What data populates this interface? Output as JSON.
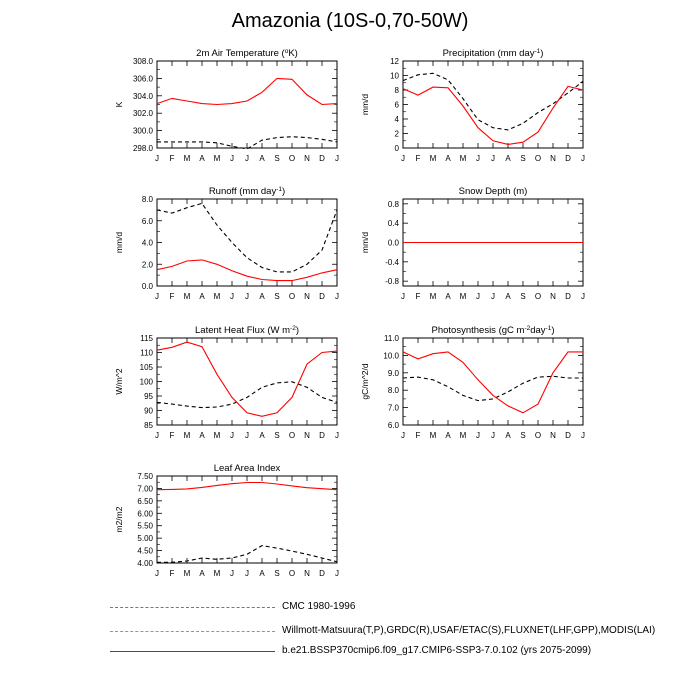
{
  "title": "Amazonia (10S-0,70-50W)",
  "months": [
    "J",
    "F",
    "M",
    "A",
    "M",
    "J",
    "J",
    "A",
    "S",
    "O",
    "N",
    "D",
    "J"
  ],
  "colors": {
    "model": "#ff0000",
    "obs": "#000000",
    "legend_cmc": "#777777",
    "legend_wm": "#8a8adf"
  },
  "chart_data": [
    {
      "type": "line",
      "title": "2m Air Temperature (°K)",
      "ylabel": "K",
      "ylim": [
        298.0,
        308.0
      ],
      "yticks": [
        "298.0",
        "300.0",
        "302.0",
        "304.0",
        "306.0",
        "308.0"
      ],
      "categories": [
        "J",
        "F",
        "M",
        "A",
        "M",
        "J",
        "J",
        "A",
        "S",
        "O",
        "N",
        "D",
        "J"
      ],
      "series": [
        {
          "name": "b.e21.BSSP370cmip6.f09_g17.CMIP6-SSP3-7.0.102 (yrs 2075-2099)",
          "style": "solid",
          "color": "#ff0000",
          "values": [
            303.1,
            303.7,
            303.4,
            303.1,
            303.0,
            303.1,
            303.4,
            304.4,
            306.0,
            305.9,
            304.1,
            303.0,
            303.1
          ]
        },
        {
          "name": "Willmott-Matsuura(T,P),GRDC(R),USAF/ETAC(S),FLUXNET(LHF,GPP),MODIS(LAI)",
          "style": "dashed",
          "color": "#000000",
          "values": [
            298.7,
            298.7,
            298.7,
            298.7,
            298.6,
            298.2,
            297.9,
            298.9,
            299.2,
            299.3,
            299.2,
            299.0,
            298.7
          ]
        }
      ]
    },
    {
      "type": "line",
      "title": "Precipitation (mm day-1)",
      "ylabel": "mm/d",
      "ylim": [
        0,
        12
      ],
      "yticks": [
        "0",
        "2",
        "4",
        "6",
        "8",
        "10",
        "12"
      ],
      "categories": [
        "J",
        "F",
        "M",
        "A",
        "M",
        "J",
        "J",
        "A",
        "S",
        "O",
        "N",
        "D",
        "J"
      ],
      "series": [
        {
          "name": "b.e21.BSSP370cmip6.f09_g17.CMIP6-SSP3-7.0.102 (yrs 2075-2099)",
          "style": "solid",
          "color": "#ff0000",
          "values": [
            8.2,
            7.3,
            8.4,
            8.3,
            5.8,
            2.8,
            1.0,
            0.5,
            0.8,
            2.2,
            5.5,
            8.5,
            8.0
          ]
        },
        {
          "name": "Willmott-Matsuura(T,P),GRDC(R),USAF/ETAC(S),FLUXNET(LHF,GPP),MODIS(LAI)",
          "style": "dashed",
          "color": "#000000",
          "values": [
            9.3,
            10.1,
            10.3,
            9.4,
            6.8,
            3.9,
            2.8,
            2.5,
            3.4,
            4.9,
            6.1,
            7.6,
            9.2
          ]
        }
      ]
    },
    {
      "type": "line",
      "title": "Runoff (mm day-1)",
      "ylabel": "mm/d",
      "ylim": [
        0,
        8
      ],
      "yticks": [
        "0.0",
        "2.0",
        "4.0",
        "6.0",
        "8.0"
      ],
      "categories": [
        "J",
        "F",
        "M",
        "A",
        "M",
        "J",
        "J",
        "A",
        "S",
        "O",
        "N",
        "D",
        "J"
      ],
      "series": [
        {
          "name": "b.e21.BSSP370cmip6.f09_g17.CMIP6-SSP3-7.0.102 (yrs 2075-2099)",
          "style": "solid",
          "color": "#ff0000",
          "values": [
            1.5,
            1.8,
            2.3,
            2.4,
            2.0,
            1.4,
            0.9,
            0.6,
            0.5,
            0.5,
            0.8,
            1.2,
            1.5
          ]
        },
        {
          "name": "Willmott-Matsuura(T,P),GRDC(R),USAF/ETAC(S),FLUXNET(LHF,GPP),MODIS(LAI)",
          "style": "dashed",
          "color": "#000000",
          "values": [
            7.0,
            6.7,
            7.2,
            7.6,
            5.6,
            4.0,
            2.6,
            1.7,
            1.3,
            1.3,
            2.0,
            3.3,
            7.0
          ]
        }
      ]
    },
    {
      "type": "line",
      "title": "Snow Depth (m)",
      "ylabel": "mm/d",
      "ylim": [
        -0.9,
        0.9
      ],
      "yticks": [
        "-0.8",
        "-0.4",
        "0.0",
        "0.4",
        "0.8"
      ],
      "ytickvals": [
        -0.8,
        -0.4,
        0.0,
        0.4,
        0.8
      ],
      "yminor": [
        -0.6,
        -0.2,
        0.2,
        0.6
      ],
      "categories": [
        "J",
        "F",
        "M",
        "A",
        "M",
        "J",
        "J",
        "A",
        "S",
        "O",
        "N",
        "D",
        "J"
      ],
      "series": [
        {
          "name": "b.e21.BSSP370cmip6.f09_g17.CMIP6-SSP3-7.0.102 (yrs 2075-2099)",
          "style": "solid",
          "color": "#ff0000",
          "values": [
            0,
            0,
            0,
            0,
            0,
            0,
            0,
            0,
            0,
            0,
            0,
            0,
            0
          ]
        },
        {
          "name": "Willmott-Matsuura(T,P),GRDC(R),USAF/ETAC(S),FLUXNET(LHF,GPP),MODIS(LAI)",
          "style": "dashed",
          "color": "#000000",
          "values": [
            0,
            0,
            0,
            0,
            0,
            0,
            0,
            0,
            0,
            0,
            0,
            0,
            0
          ]
        }
      ]
    },
    {
      "type": "line",
      "title": "Latent Heat Flux (W m-2)",
      "ylabel": "W/m^2",
      "ylim": [
        85,
        115
      ],
      "yticks": [
        "85",
        "90",
        "95",
        "100",
        "105",
        "110",
        "115"
      ],
      "categories": [
        "J",
        "F",
        "M",
        "A",
        "M",
        "J",
        "J",
        "A",
        "S",
        "O",
        "N",
        "D",
        "J"
      ],
      "series": [
        {
          "name": "b.e21.BSSP370cmip6.f09_g17.CMIP6-SSP3-7.0.102 (yrs 2075-2099)",
          "style": "solid",
          "color": "#ff0000",
          "values": [
            110.8,
            111.8,
            113.6,
            112.0,
            102.5,
            94.5,
            89.2,
            88.0,
            89.2,
            94.5,
            106.0,
            110.0,
            110.5
          ]
        },
        {
          "name": "Willmott-Matsuura(T,P),GRDC(R),USAF/ETAC(S),FLUXNET(LHF,GPP),MODIS(LAI)",
          "style": "dashed",
          "color": "#000000",
          "values": [
            92.8,
            92.2,
            91.5,
            91.0,
            91.2,
            92.2,
            94.5,
            98.0,
            99.5,
            99.9,
            98.0,
            94.5,
            92.8
          ]
        }
      ]
    },
    {
      "type": "line",
      "title": "Photosynthesis (gC m-2day-1)",
      "ylabel": "gC/m^2/d",
      "ylim": [
        6.0,
        11.0
      ],
      "yticks": [
        "6.0",
        "7.0",
        "8.0",
        "9.0",
        "10.0",
        "11.0"
      ],
      "categories": [
        "J",
        "F",
        "M",
        "A",
        "M",
        "J",
        "J",
        "A",
        "S",
        "O",
        "N",
        "D",
        "J"
      ],
      "series": [
        {
          "name": "b.e21.BSSP370cmip6.f09_g17.CMIP6-SSP3-7.0.102 (yrs 2075-2099)",
          "style": "solid",
          "color": "#ff0000",
          "values": [
            10.2,
            9.8,
            10.1,
            10.2,
            9.6,
            8.6,
            7.7,
            7.1,
            6.7,
            7.2,
            9.0,
            10.2,
            10.2
          ]
        },
        {
          "name": "Willmott-Matsuura(T,P),GRDC(R),USAF/ETAC(S),FLUXNET(LHF,GPP),MODIS(LAI)",
          "style": "dashed",
          "color": "#000000",
          "values": [
            8.7,
            8.75,
            8.6,
            8.2,
            7.7,
            7.4,
            7.5,
            7.9,
            8.4,
            8.75,
            8.8,
            8.7,
            8.7
          ]
        }
      ]
    },
    {
      "type": "line",
      "title": "Leaf Area Index",
      "ylabel": "m2/m2",
      "ylim": [
        4.0,
        7.5
      ],
      "yticks": [
        "4.00",
        "4.50",
        "5.00",
        "5.50",
        "6.00",
        "6.50",
        "7.00",
        "7.50"
      ],
      "categories": [
        "J",
        "F",
        "M",
        "A",
        "M",
        "J",
        "J",
        "A",
        "S",
        "O",
        "N",
        "D",
        "J"
      ],
      "series": [
        {
          "name": "b.e21.BSSP370cmip6.f09_g17.CMIP6-SSP3-7.0.102 (yrs 2075-2099)",
          "style": "solid",
          "color": "#ff0000",
          "values": [
            6.95,
            6.96,
            6.98,
            7.04,
            7.12,
            7.19,
            7.24,
            7.24,
            7.18,
            7.1,
            7.03,
            6.99,
            6.95
          ]
        },
        {
          "name": "Willmott-Matsuura(T,P),GRDC(R),USAF/ETAC(S),FLUXNET(LHF,GPP),MODIS(LAI)",
          "style": "dashed",
          "color": "#000000",
          "values": [
            4.03,
            4.03,
            4.08,
            4.2,
            4.15,
            4.2,
            4.35,
            4.7,
            4.6,
            4.48,
            4.35,
            4.2,
            4.05
          ]
        }
      ]
    }
  ],
  "legend": [
    {
      "label": "CMC 1980-1996",
      "style": "dashed",
      "color": "#777777"
    },
    {
      "label": "Willmott-Matsuura(T,P),GRDC(R),USAF/ETAC(S),FLUXNET(LHF,GPP),MODIS(LAI)",
      "style": "dashed",
      "color": "#8a8adf"
    },
    {
      "label": "b.e21.BSSP370cmip6.f09_g17.CMIP6-SSP3-7.0.102 (yrs 2075-2099)",
      "style": "solid",
      "color": "#ff0000"
    }
  ]
}
